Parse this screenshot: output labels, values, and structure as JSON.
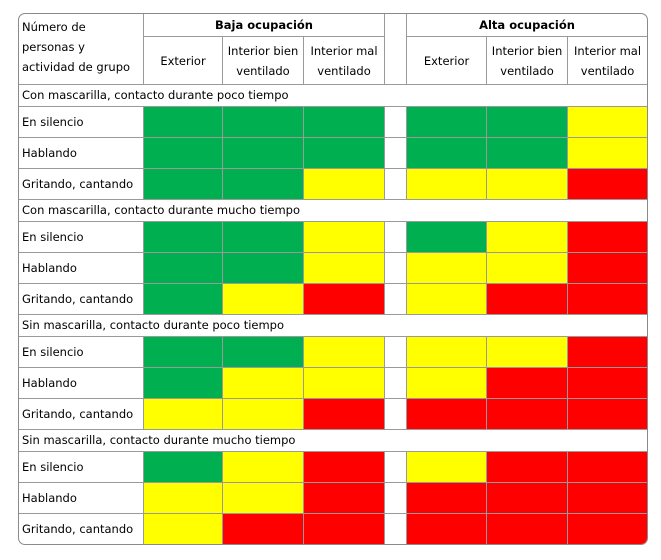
{
  "header": {
    "corner_label": "Número de personas y actividad de grupo",
    "groups": [
      "Baja ocupación",
      "Alta ocupación"
    ],
    "columns": [
      "Exterior",
      "Interior bien ventilado",
      "Interior mal ventilado",
      "Exterior",
      "Interior bien ventilado",
      "Interior mal ventilado"
    ]
  },
  "colors": {
    "green": "#00b050",
    "yellow": "#ffff00",
    "red": "#ff0000"
  },
  "sections": [
    {
      "title": "Con mascarilla, contacto durante poco tiempo",
      "rows": [
        {
          "label": "En silencio",
          "cells": [
            "green",
            "green",
            "green",
            "green",
            "green",
            "yellow"
          ]
        },
        {
          "label": "Hablando",
          "cells": [
            "green",
            "green",
            "green",
            "green",
            "green",
            "yellow"
          ]
        },
        {
          "label": "Gritando, cantando",
          "cells": [
            "green",
            "green",
            "yellow",
            "yellow",
            "yellow",
            "red"
          ]
        }
      ]
    },
    {
      "title": "Con mascarilla, contacto durante mucho tiempo",
      "rows": [
        {
          "label": "En silencio",
          "cells": [
            "green",
            "green",
            "yellow",
            "green",
            "yellow",
            "red"
          ]
        },
        {
          "label": "Hablando",
          "cells": [
            "green",
            "green",
            "yellow",
            "yellow",
            "yellow",
            "red"
          ]
        },
        {
          "label": "Gritando, cantando",
          "cells": [
            "green",
            "yellow",
            "red",
            "yellow",
            "red",
            "red"
          ]
        }
      ]
    },
    {
      "title": "Sin mascarilla, contacto durante poco tiempo",
      "rows": [
        {
          "label": "En silencio",
          "cells": [
            "green",
            "green",
            "yellow",
            "yellow",
            "yellow",
            "red"
          ]
        },
        {
          "label": "Hablando",
          "cells": [
            "green",
            "yellow",
            "yellow",
            "yellow",
            "red",
            "red"
          ]
        },
        {
          "label": "Gritando, cantando",
          "cells": [
            "yellow",
            "yellow",
            "red",
            "red",
            "red",
            "red"
          ]
        }
      ]
    },
    {
      "title": "Sin mascarilla, contacto durante mucho tiempo",
      "rows": [
        {
          "label": "En silencio",
          "cells": [
            "green",
            "yellow",
            "red",
            "yellow",
            "red",
            "red"
          ]
        },
        {
          "label": "Hablando",
          "cells": [
            "yellow",
            "yellow",
            "red",
            "red",
            "red",
            "red"
          ]
        },
        {
          "label": "Gritando, cantando",
          "cells": [
            "yellow",
            "red",
            "red",
            "red",
            "red",
            "red"
          ]
        }
      ]
    }
  ]
}
